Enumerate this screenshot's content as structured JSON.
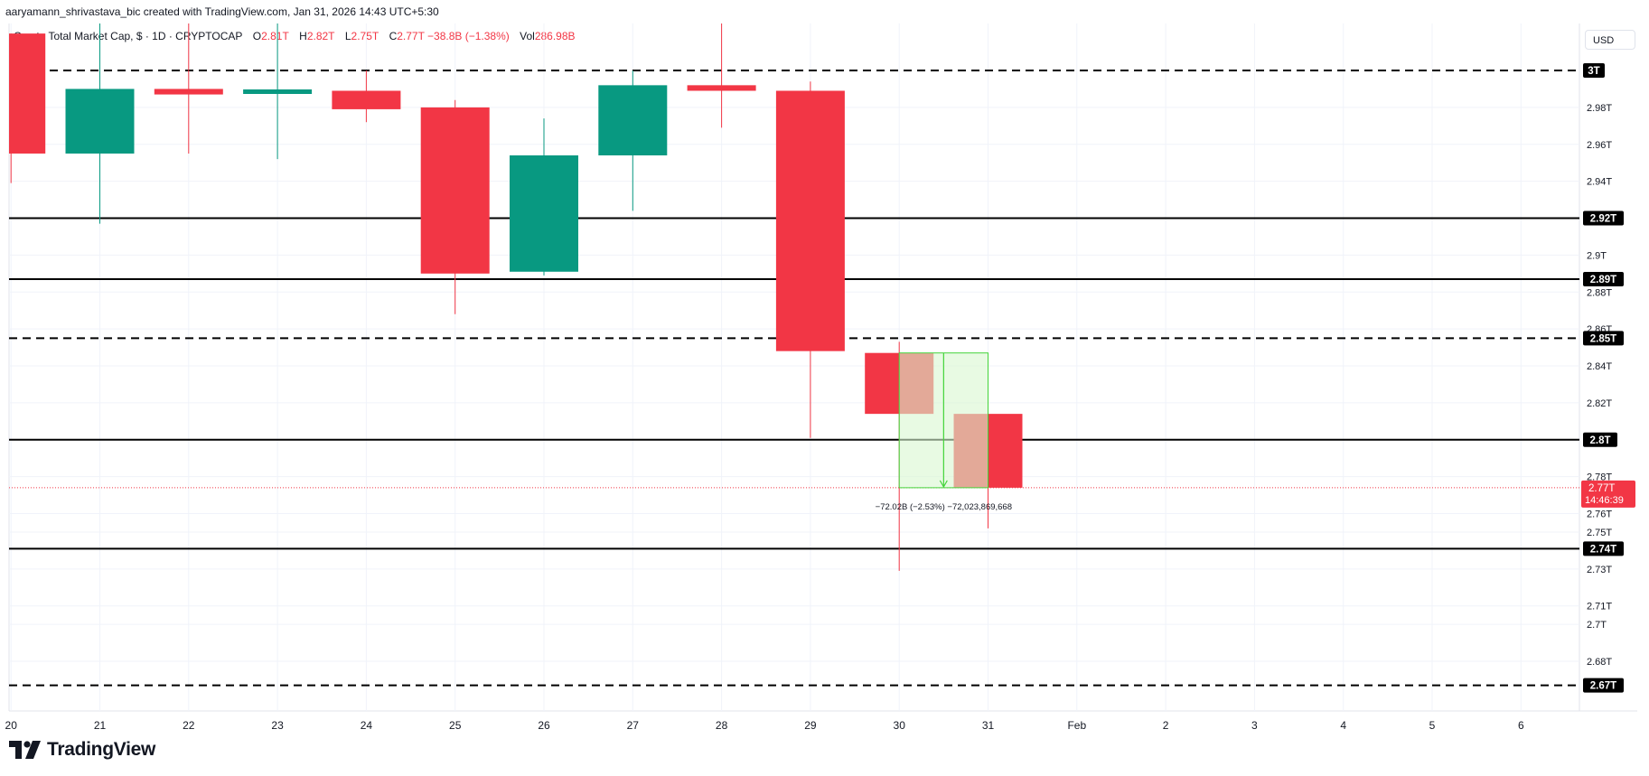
{
  "attribution": "aaryamann_shrivastava_bic created with TradingView.com, Jan 31, 2026 14:43 UTC+5:30",
  "legend": {
    "symbol": "Crypto Total Market Cap, $ · 1D · CRYPTOCAP",
    "o_label": "O",
    "o_value": "2.81T",
    "h_label": "H",
    "h_value": "2.82T",
    "l_label": "L",
    "l_value": "2.75T",
    "c_label": "C",
    "c_value": "2.77T",
    "change": "−38.8B (−1.38%)",
    "vol_label": "Vol",
    "vol_value": "286.98B"
  },
  "currency_button": "USD",
  "brand": "TradingView",
  "colors": {
    "up": "#089981",
    "down": "#f23645",
    "measure_fill": "#d8f7d0",
    "measure_line": "#43d43a",
    "grid": "#f0f3fa"
  },
  "chart_data": {
    "type": "candlestick",
    "title": "Crypto Total Market Cap, $ · 1D · CRYPTOCAP",
    "ylim": [
      2.665,
      3.015
    ],
    "y_ticks": [
      "2.68T",
      "2.7T",
      "2.71T",
      "2.73T",
      "2.75T",
      "2.76T",
      "2.78T",
      "2.82T",
      "2.84T",
      "2.86T",
      "2.88T",
      "2.9T",
      "2.94T",
      "2.96T",
      "2.98T"
    ],
    "y_tick_values": [
      2.68,
      2.7,
      2.71,
      2.73,
      2.75,
      2.76,
      2.78,
      2.82,
      2.84,
      2.86,
      2.88,
      2.9,
      2.94,
      2.96,
      2.98
    ],
    "x_labels": [
      "20",
      "21",
      "22",
      "23",
      "24",
      "25",
      "26",
      "27",
      "28",
      "29",
      "30",
      "31",
      "Feb",
      "2",
      "3",
      "4",
      "5",
      "6"
    ],
    "candles": [
      {
        "date": "20",
        "open": 3.02,
        "high": 3.02,
        "low": 2.939,
        "close": 2.955
      },
      {
        "date": "21",
        "open": 2.955,
        "high": 3.03,
        "low": 2.917,
        "close": 2.99
      },
      {
        "date": "22",
        "open": 2.99,
        "high": 3.03,
        "low": 2.955,
        "close": 2.987
      },
      {
        "date": "23",
        "open": 2.988,
        "high": 3.03,
        "low": 2.952,
        "close": 2.989
      },
      {
        "date": "24",
        "open": 2.989,
        "high": 3.0,
        "low": 2.972,
        "close": 2.979
      },
      {
        "date": "25",
        "open": 2.98,
        "high": 2.984,
        "low": 2.868,
        "close": 2.89
      },
      {
        "date": "26",
        "open": 2.891,
        "high": 2.974,
        "low": 2.889,
        "close": 2.954
      },
      {
        "date": "27",
        "open": 2.954,
        "high": 3.0,
        "low": 2.924,
        "close": 2.992
      },
      {
        "date": "28",
        "open": 2.992,
        "high": 3.03,
        "low": 2.969,
        "close": 2.989
      },
      {
        "date": "29",
        "open": 2.989,
        "high": 2.994,
        "low": 2.801,
        "close": 2.848
      },
      {
        "date": "30",
        "open": 2.847,
        "high": 2.853,
        "low": 2.729,
        "close": 2.814
      },
      {
        "date": "31",
        "open": 2.814,
        "high": 2.817,
        "low": 2.752,
        "close": 2.774
      }
    ],
    "horizontal_lines": [
      {
        "value": 3.0,
        "label": "3T",
        "style": "dashed"
      },
      {
        "value": 2.92,
        "label": "2.92T",
        "style": "solid"
      },
      {
        "value": 2.887,
        "label": "2.89T",
        "style": "solid"
      },
      {
        "value": 2.855,
        "label": "2.85T",
        "style": "dashed"
      },
      {
        "value": 2.8,
        "label": "2.8T",
        "style": "solid"
      },
      {
        "value": 2.741,
        "label": "2.74T",
        "style": "solid"
      },
      {
        "value": 2.667,
        "label": "2.67T",
        "style": "dashed"
      }
    ],
    "last_price": {
      "value": 2.774,
      "label": "2.77T",
      "countdown": "14:46:39"
    },
    "measure": {
      "from_date": "30",
      "to_date": "31",
      "top": 2.847,
      "bottom": 2.774,
      "label": "−72.02B (−2.53%) −72,023,869,668"
    }
  }
}
